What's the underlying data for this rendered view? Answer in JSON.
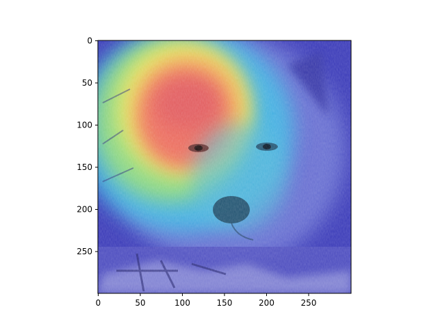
{
  "figure": {
    "subject": "white wolf face with Grad-CAM style jet colormap heatmap overlay",
    "colormap": "jet",
    "background_color": "#ffffff",
    "image_extent": {
      "x": [
        0,
        300
      ],
      "y": [
        0,
        300
      ]
    },
    "x_ticks": [
      {
        "value": 0,
        "label": "0"
      },
      {
        "value": 50,
        "label": "50"
      },
      {
        "value": 100,
        "label": "100"
      },
      {
        "value": 150,
        "label": "150"
      },
      {
        "value": 200,
        "label": "200"
      },
      {
        "value": 250,
        "label": "250"
      }
    ],
    "y_ticks": [
      {
        "value": 0,
        "label": "0"
      },
      {
        "value": 50,
        "label": "50"
      },
      {
        "value": 100,
        "label": "100"
      },
      {
        "value": 150,
        "label": "150"
      },
      {
        "value": 200,
        "label": "200"
      },
      {
        "value": 250,
        "label": "250"
      }
    ],
    "heatmap_peak_region": "left side of wolf face around the eye and forehead (approx x 60–140, y 60–170)"
  }
}
